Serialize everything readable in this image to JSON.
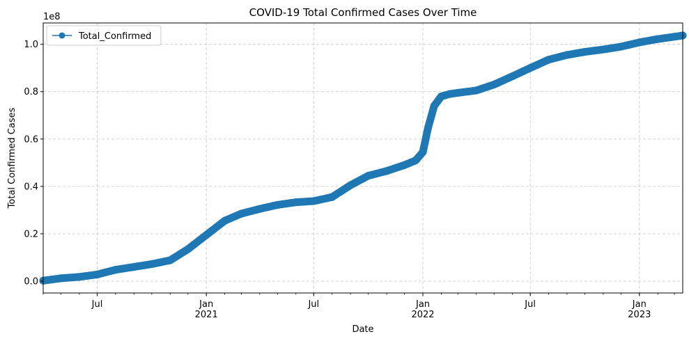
{
  "chart_data": {
    "type": "line",
    "title": "COVID-19 Total Confirmed Cases Over Time",
    "xlabel": "Date",
    "ylabel": "Total Confirmed Cases",
    "y_offset_label": "1e8",
    "x_range": [
      "2020-04-01",
      "2023-03-15"
    ],
    "ylim": [
      -0.05,
      1.09
    ],
    "y_ticks": [
      0.0,
      0.2,
      0.4,
      0.6,
      0.8,
      1.0
    ],
    "y_tick_labels": [
      "0.0",
      "0.2",
      "0.4",
      "0.6",
      "0.8",
      "1.0"
    ],
    "x_major_ticks": [
      {
        "date": "2020-07-01",
        "label": "Jul",
        "year": ""
      },
      {
        "date": "2021-01-01",
        "label": "Jan",
        "year": "2021"
      },
      {
        "date": "2021-07-01",
        "label": "Jul",
        "year": ""
      },
      {
        "date": "2022-01-01",
        "label": "Jan",
        "year": "2022"
      },
      {
        "date": "2022-07-01",
        "label": "Jul",
        "year": ""
      },
      {
        "date": "2023-01-01",
        "label": "Jan",
        "year": "2023"
      }
    ],
    "grid": true,
    "legend_position": "upper-left",
    "series": [
      {
        "name": "Total_Confirmed",
        "color": "#1f77b4",
        "x": [
          "2020-04-01",
          "2020-05-01",
          "2020-06-01",
          "2020-07-01",
          "2020-08-01",
          "2020-09-01",
          "2020-10-01",
          "2020-11-01",
          "2020-12-01",
          "2021-01-01",
          "2021-02-01",
          "2021-03-01",
          "2021-04-01",
          "2021-05-01",
          "2021-06-01",
          "2021-07-01",
          "2021-08-01",
          "2021-09-01",
          "2021-10-01",
          "2021-11-01",
          "2021-12-01",
          "2021-12-20",
          "2022-01-01",
          "2022-01-10",
          "2022-01-20",
          "2022-02-01",
          "2022-02-15",
          "2022-03-01",
          "2022-04-01",
          "2022-05-01",
          "2022-06-01",
          "2022-07-01",
          "2022-08-01",
          "2022-09-01",
          "2022-10-01",
          "2022-11-01",
          "2022-12-01",
          "2023-01-01",
          "2023-02-01",
          "2023-03-15"
        ],
        "y": [
          0.002,
          0.012,
          0.018,
          0.028,
          0.048,
          0.06,
          0.072,
          0.088,
          0.135,
          0.195,
          0.255,
          0.285,
          0.305,
          0.322,
          0.333,
          0.338,
          0.355,
          0.405,
          0.445,
          0.465,
          0.49,
          0.51,
          0.545,
          0.65,
          0.74,
          0.78,
          0.79,
          0.795,
          0.805,
          0.83,
          0.865,
          0.9,
          0.935,
          0.955,
          0.968,
          0.978,
          0.99,
          1.008,
          1.022,
          1.037
        ]
      }
    ]
  }
}
